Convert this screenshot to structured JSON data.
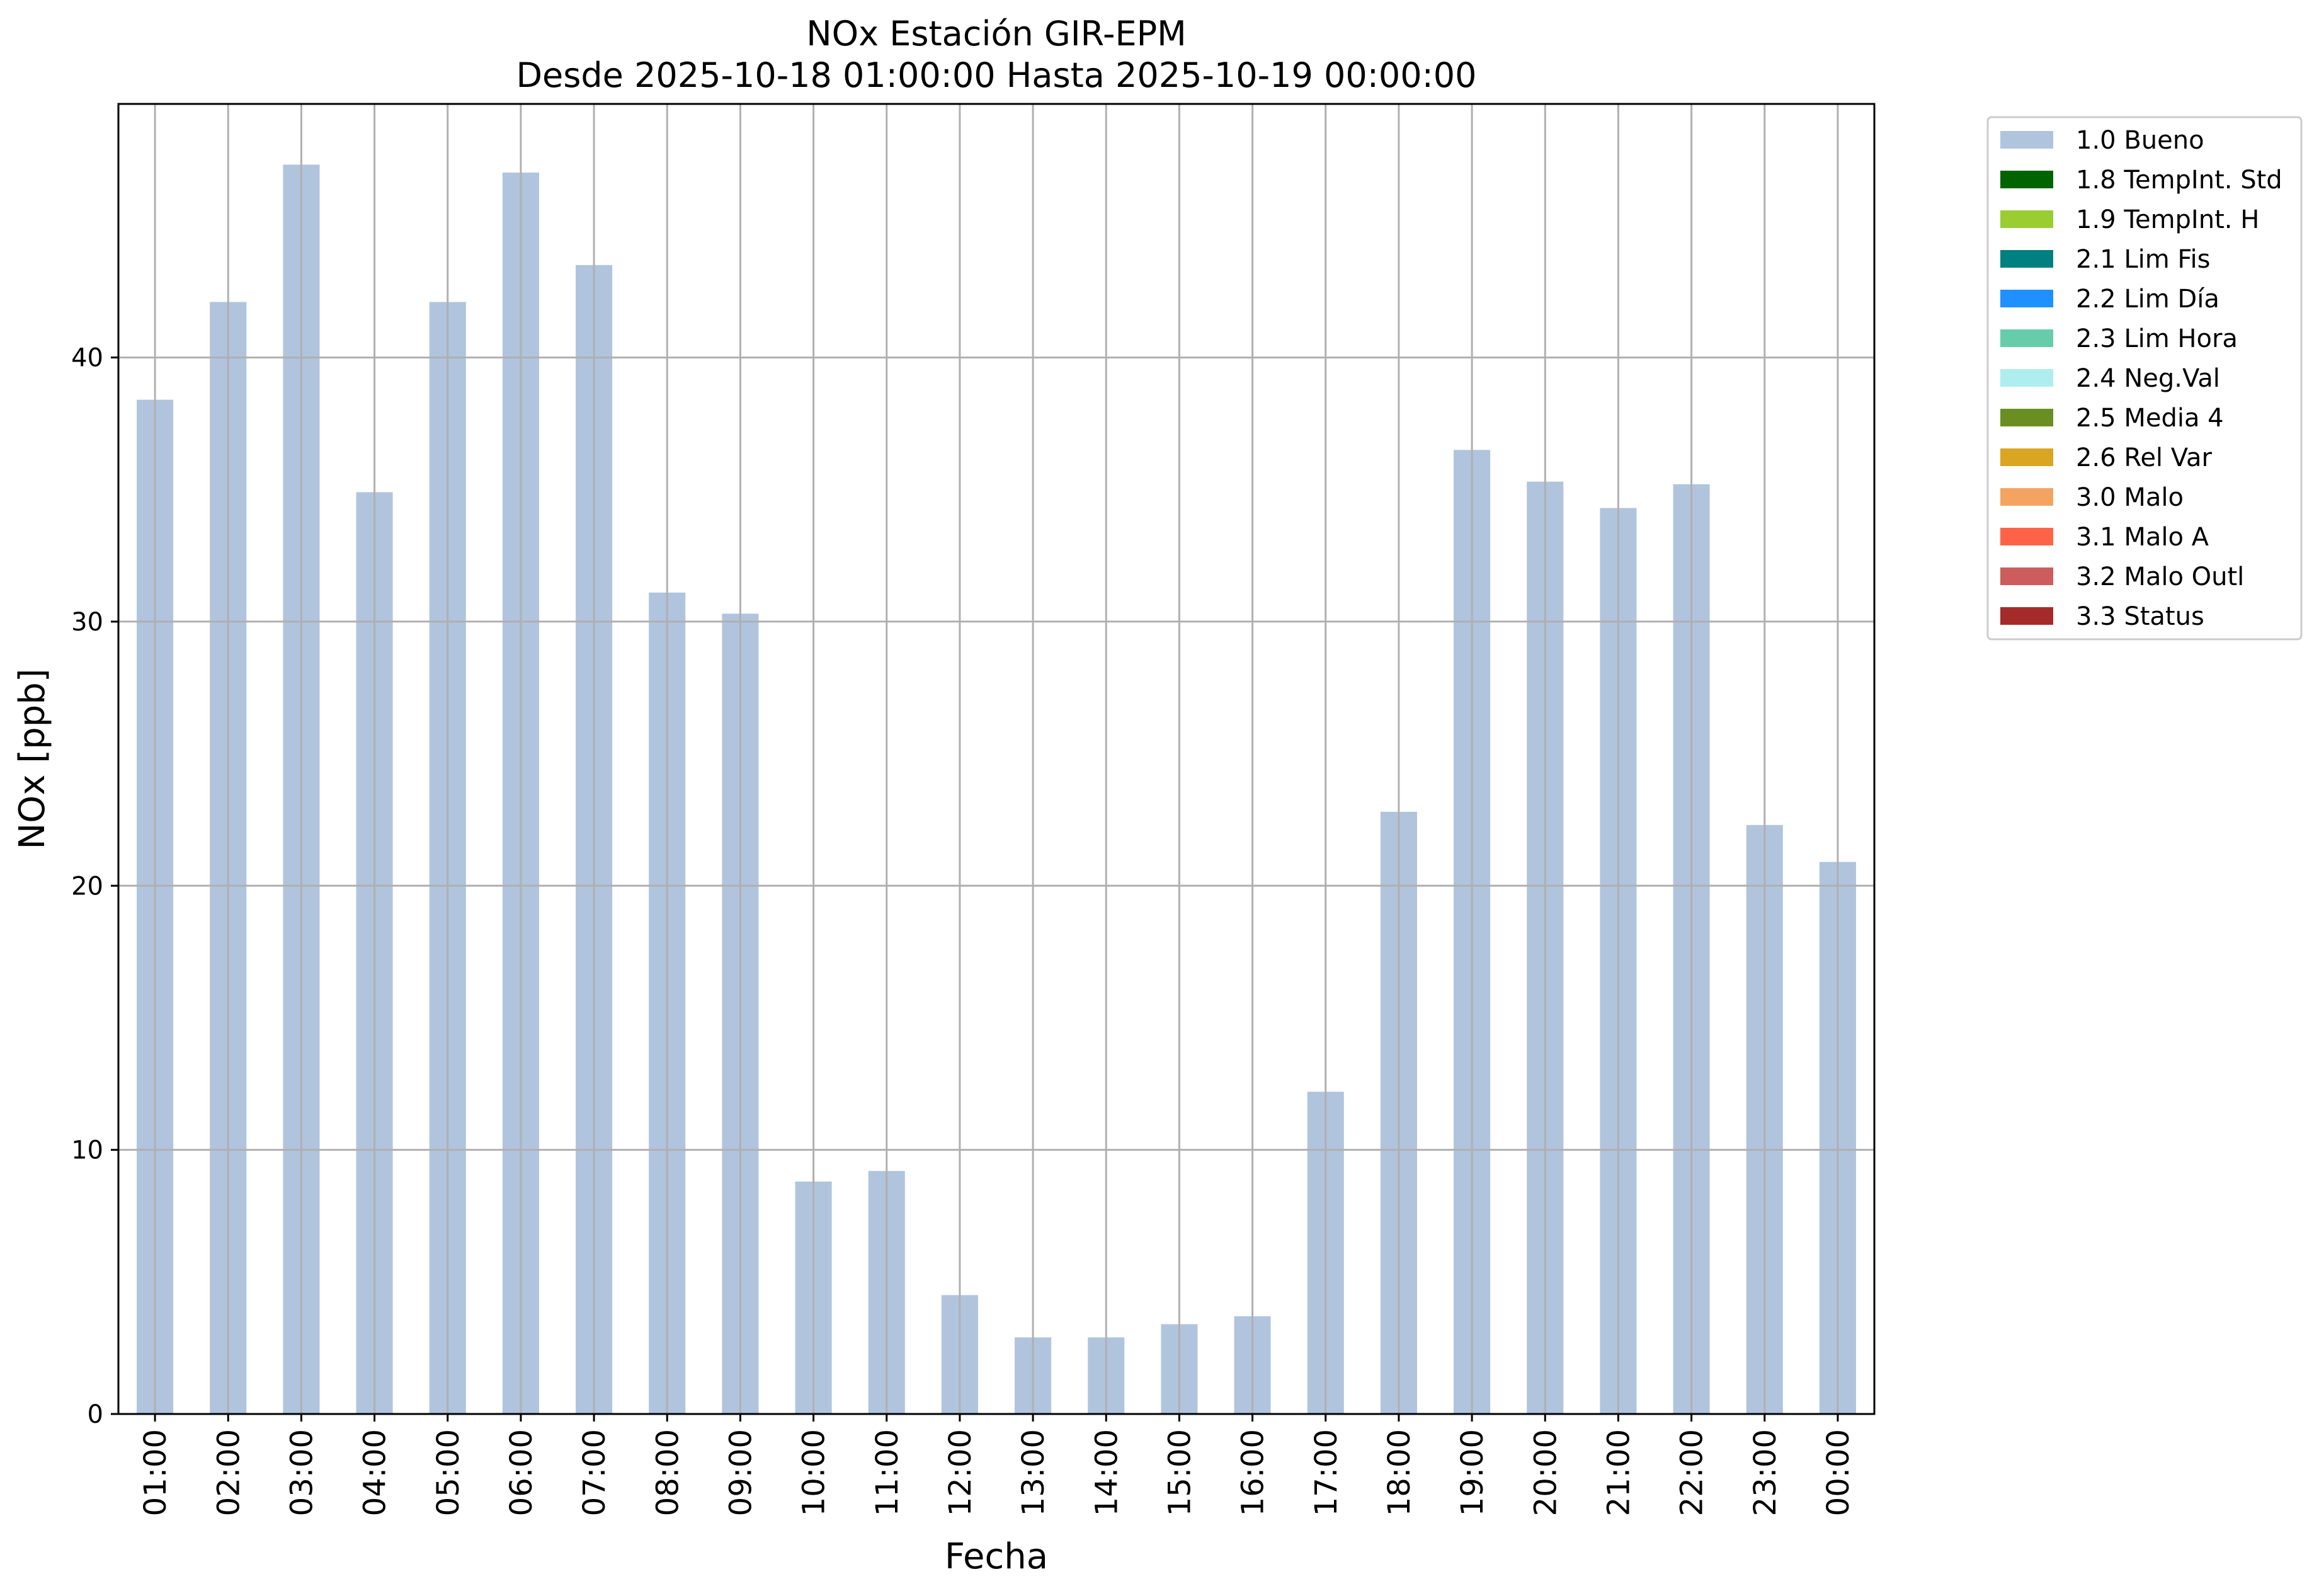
{
  "chart_data": {
    "type": "bar",
    "title": "NOx Estación GIR-EPM",
    "subtitle": "Desde 2025-10-18 01:00:00 Hasta 2025-10-19 00:00:00",
    "xlabel": "Fecha",
    "ylabel": "NOx [ppb]",
    "ylim": [
      0,
      49.6
    ],
    "yticks": [
      "0",
      "10",
      "20",
      "30",
      "40"
    ],
    "grid": true,
    "legend_position": "outside-top-right",
    "categories": [
      "01:00",
      "02:00",
      "03:00",
      "04:00",
      "05:00",
      "06:00",
      "07:00",
      "08:00",
      "09:00",
      "10:00",
      "11:00",
      "12:00",
      "13:00",
      "14:00",
      "15:00",
      "16:00",
      "17:00",
      "18:00",
      "19:00",
      "20:00",
      "21:00",
      "22:00",
      "23:00",
      "00:00"
    ],
    "series": [
      {
        "name": "1.0 Bueno",
        "color": "#b0c4de",
        "values": [
          38.4,
          42.1,
          47.3,
          34.9,
          42.1,
          47.0,
          43.5,
          31.1,
          30.3,
          8.8,
          9.2,
          4.5,
          2.9,
          2.9,
          3.4,
          3.7,
          12.2,
          22.8,
          36.5,
          35.3,
          34.3,
          35.2,
          22.3,
          20.9
        ]
      }
    ],
    "legend": [
      {
        "label": "1.0 Bueno",
        "color": "#b0c4de"
      },
      {
        "label": "1.8 TempInt. Std",
        "color": "#006400"
      },
      {
        "label": "1.9 TempInt. H",
        "color": "#9acd32"
      },
      {
        "label": "2.1 Lim Fis",
        "color": "#008080"
      },
      {
        "label": "2.2 Lim Día",
        "color": "#1e90ff"
      },
      {
        "label": "2.3 Lim Hora",
        "color": "#66cdaa"
      },
      {
        "label": "2.4 Neg.Val",
        "color": "#afeeee"
      },
      {
        "label": "2.5 Media 4",
        "color": "#6b8e23"
      },
      {
        "label": "2.6 Rel Var",
        "color": "#daa520"
      },
      {
        "label": "3.0 Malo",
        "color": "#f4a460"
      },
      {
        "label": "3.1 Malo A",
        "color": "#ff6347"
      },
      {
        "label": "3.2 Malo Outl",
        "color": "#cd5c5c"
      },
      {
        "label": "3.3 Status",
        "color": "#a52a2a"
      }
    ]
  }
}
